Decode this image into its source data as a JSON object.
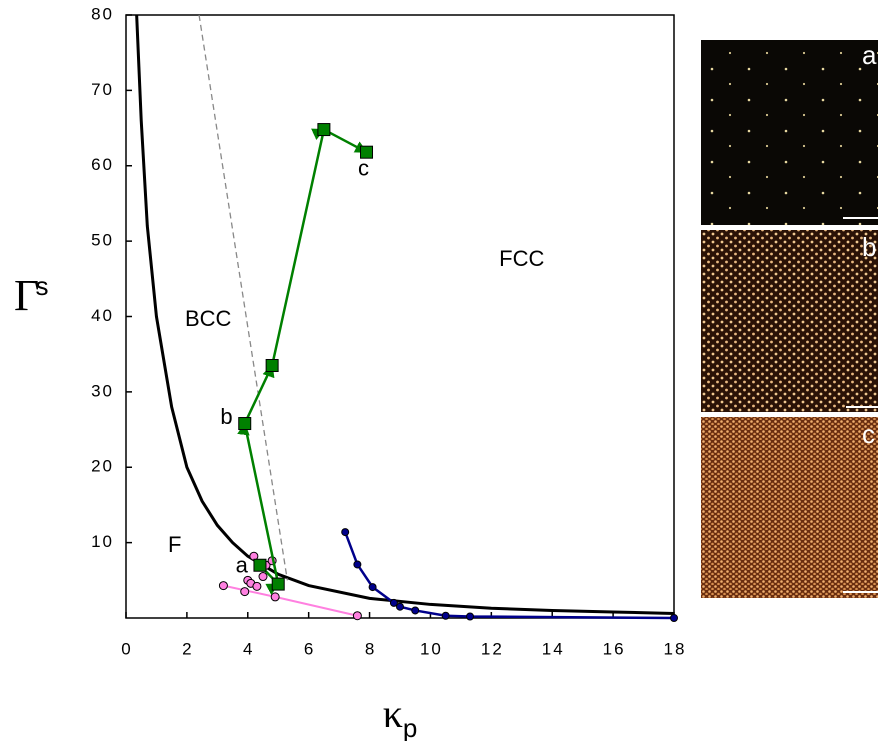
{
  "chart_data": {
    "type": "line",
    "x_label": "κ",
    "x_label_sub": "p",
    "y_label": "Γ",
    "y_label_sub": "s",
    "xlim": [
      0,
      18
    ],
    "xticks": [
      0,
      2,
      4,
      6,
      8,
      10,
      12,
      14,
      16,
      18
    ],
    "ylim": [
      0,
      80
    ],
    "yticks": [
      10,
      20,
      30,
      40,
      50,
      60,
      70,
      80
    ],
    "series": [
      {
        "color": "#000000",
        "width": 3,
        "marker": "none",
        "x": [
          0.35,
          0.5,
          0.7,
          1,
          1.5,
          2,
          2.5,
          3,
          3.5,
          4,
          5,
          6,
          8,
          10,
          12,
          14,
          16,
          18
        ],
        "y": [
          80,
          66,
          52,
          40,
          28,
          20,
          15.5,
          12.3,
          10,
          8.2,
          5.8,
          4.3,
          2.6,
          1.8,
          1.3,
          1.0,
          0.8,
          0.6
        ]
      },
      {
        "color": "#888888",
        "width": 1.3,
        "marker": "none",
        "dashed": true,
        "x": [
          2.4,
          5.3
        ],
        "y": [
          80,
          5
        ]
      },
      {
        "color": "#ff80e0",
        "width": 2,
        "marker": "circle",
        "x": [
          3.2,
          4.9,
          7.6
        ],
        "y": [
          4.3,
          2.8,
          0.3
        ]
      },
      {
        "color": "#ff80e0",
        "width": 0,
        "marker": "circle",
        "x": [
          3.9,
          4.0,
          4.1,
          4.2,
          4.3,
          4.5,
          4.6,
          4.8
        ],
        "y": [
          3.5,
          5.0,
          4.6,
          8.2,
          4.2,
          5.5,
          7.0,
          7.6
        ]
      },
      {
        "color": "#00008b",
        "width": 2.5,
        "marker": "circle",
        "x": [
          7.2,
          7.6,
          8.1,
          8.8,
          9.0,
          9.5,
          10.5,
          11.3,
          18
        ],
        "y": [
          11.4,
          7.1,
          4.1,
          2.0,
          1.5,
          1.0,
          0.3,
          0.2,
          0
        ]
      },
      {
        "color": "#008000",
        "width": 2.5,
        "marker": "square",
        "arrows": true,
        "x": [
          4.4,
          5.0,
          3.9,
          4.8,
          6.5,
          7.9
        ],
        "y": [
          7.0,
          4.5,
          25.8,
          33.5,
          64.8,
          61.8
        ]
      }
    ],
    "annotations": [
      {
        "text": "BCC",
        "x": 2.7,
        "y": 39.5
      },
      {
        "text": "FCC",
        "x": 13.0,
        "y": 47.5
      },
      {
        "text": "F",
        "x": 1.6,
        "y": 9.5
      },
      {
        "text": "a",
        "x": 3.8,
        "y": 6.8
      },
      {
        "text": "b",
        "x": 3.3,
        "y": 26.5
      },
      {
        "text": "c",
        "x": 7.8,
        "y": 59.5
      }
    ]
  },
  "panels": [
    {
      "label": "a"
    },
    {
      "label": "b"
    },
    {
      "label": "c"
    }
  ]
}
